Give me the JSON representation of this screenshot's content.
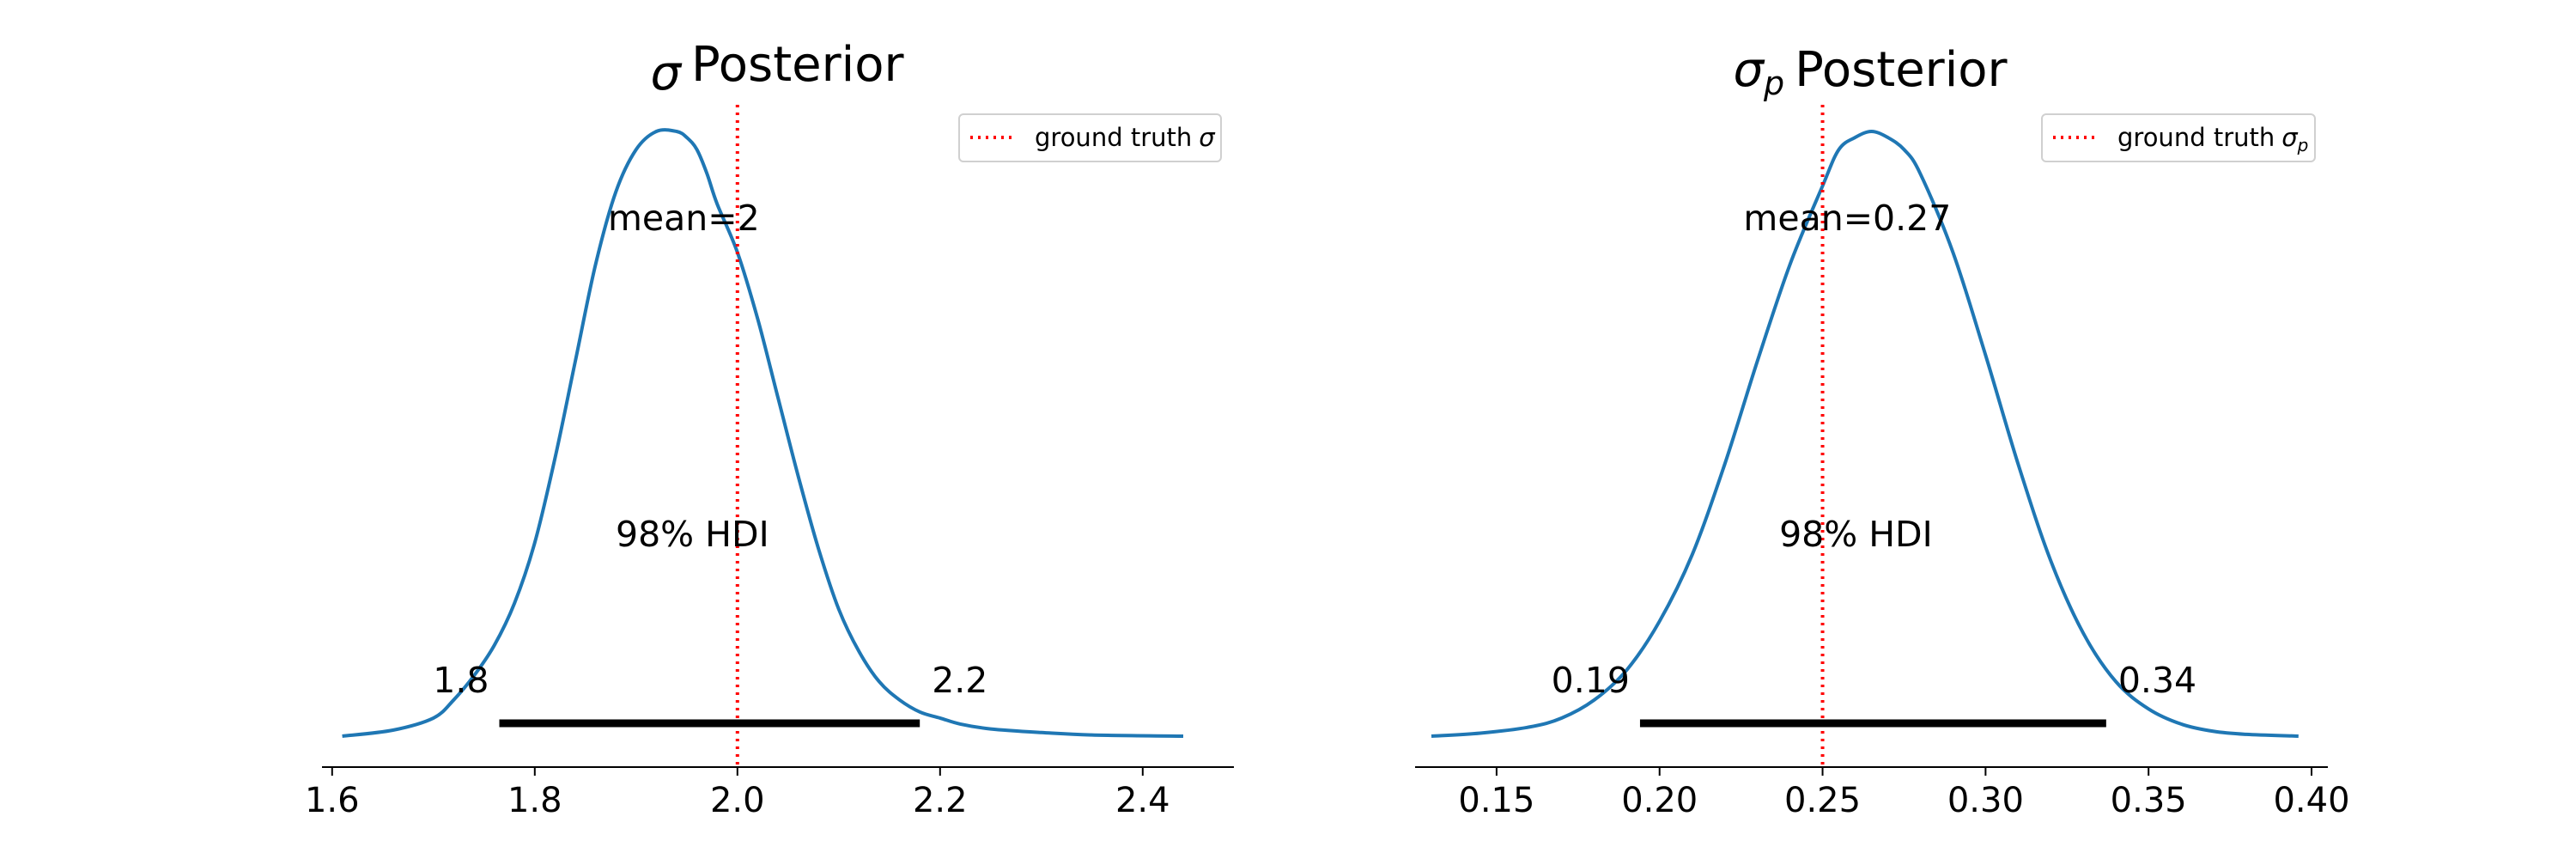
{
  "chart_data": [
    {
      "type": "line",
      "title_symbol": "σ",
      "title_sub": "",
      "title_rest": "Posterior",
      "xlabel": "",
      "ylabel": "",
      "xlim": [
        1.59,
        2.49
      ],
      "xticks": [
        1.6,
        1.8,
        2.0,
        2.2,
        2.4
      ],
      "xtick_labels": [
        "1.6",
        "1.8",
        "2.0",
        "2.2",
        "2.4"
      ],
      "grid": false,
      "legend": {
        "location": "top-right",
        "label": "ground truth",
        "label_symbol": "σ",
        "label_sub": ""
      },
      "colors": {
        "density": "#1f77b4",
        "ground_truth": "#ff0000",
        "hdi": "#000000"
      },
      "series": [
        {
          "x": [
            1.61,
            1.66,
            1.7,
            1.72,
            1.74,
            1.76,
            1.78,
            1.8,
            1.82,
            1.84,
            1.86,
            1.88,
            1.9,
            1.92,
            1.94,
            1.95,
            1.96,
            1.97,
            1.98,
            2.0,
            2.02,
            2.04,
            2.06,
            2.08,
            2.1,
            2.12,
            2.14,
            2.16,
            2.18,
            2.2,
            2.22,
            2.25,
            2.3,
            2.35,
            2.44
          ],
          "y": [
            0.0,
            0.01,
            0.03,
            0.06,
            0.1,
            0.15,
            0.22,
            0.32,
            0.46,
            0.62,
            0.78,
            0.9,
            0.97,
            1.0,
            1.0,
            0.99,
            0.97,
            0.93,
            0.88,
            0.8,
            0.69,
            0.56,
            0.43,
            0.31,
            0.21,
            0.14,
            0.09,
            0.06,
            0.04,
            0.03,
            0.02,
            0.012,
            0.006,
            0.002,
            0.0
          ]
        }
      ],
      "ground_truth": 2.0,
      "mean_label": "mean=2",
      "hdi_label": "98% HDI",
      "hdi": [
        1.765,
        2.18
      ],
      "hdi_low_label": "1.8",
      "hdi_high_label": "2.2"
    },
    {
      "type": "line",
      "title_symbol": "σ",
      "title_sub": "p",
      "title_rest": "Posterior",
      "xlabel": "",
      "ylabel": "",
      "xlim": [
        0.125,
        0.405
      ],
      "xticks": [
        0.15,
        0.2,
        0.25,
        0.3,
        0.35,
        0.4
      ],
      "xtick_labels": [
        "0.15",
        "0.20",
        "0.25",
        "0.30",
        "0.35",
        "0.40"
      ],
      "grid": false,
      "legend": {
        "location": "top-right",
        "label": "ground truth",
        "label_symbol": "σ",
        "label_sub": "p"
      },
      "colors": {
        "density": "#1f77b4",
        "ground_truth": "#ff0000",
        "hdi": "#000000"
      },
      "series": [
        {
          "x": [
            0.13,
            0.145,
            0.16,
            0.17,
            0.18,
            0.19,
            0.2,
            0.21,
            0.22,
            0.23,
            0.24,
            0.25,
            0.255,
            0.26,
            0.265,
            0.27,
            0.275,
            0.28,
            0.29,
            0.3,
            0.31,
            0.32,
            0.33,
            0.34,
            0.35,
            0.36,
            0.37,
            0.38,
            0.396
          ],
          "y": [
            0.0,
            0.005,
            0.015,
            0.03,
            0.06,
            0.11,
            0.19,
            0.3,
            0.45,
            0.62,
            0.78,
            0.91,
            0.97,
            0.99,
            1.0,
            0.99,
            0.97,
            0.93,
            0.8,
            0.63,
            0.45,
            0.29,
            0.17,
            0.09,
            0.045,
            0.02,
            0.008,
            0.003,
            0.0
          ]
        }
      ],
      "ground_truth": 0.25,
      "mean_label": "mean=0.27",
      "hdi_label": "98% HDI",
      "hdi": [
        0.194,
        0.337
      ],
      "hdi_low_label": "0.19",
      "hdi_high_label": "0.34"
    }
  ]
}
